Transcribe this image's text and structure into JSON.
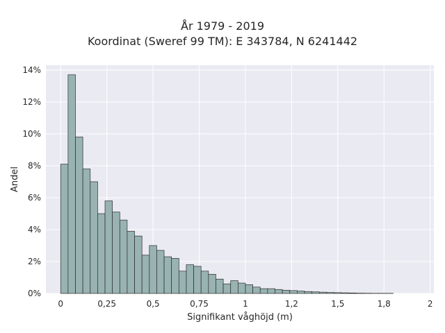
{
  "chart_data": {
    "type": "bar",
    "title": "År 1979 - 2019",
    "subtitle": "Koordinat (Sweref 99 TM): E 343784, N 6241442",
    "xlabel": "Signifikant våghöjd (m)",
    "ylabel": "Andel",
    "xlim": [
      -0.08,
      2.02
    ],
    "ylim": [
      0,
      14.3
    ],
    "x_ticks": [
      0,
      0.25,
      0.5,
      0.75,
      1,
      1.25,
      1.5,
      1.75,
      2
    ],
    "x_tick_labels": [
      "0",
      "0,25",
      "0,5",
      "0,75",
      "1",
      "1,2",
      "1,5",
      "1,8",
      "2"
    ],
    "y_ticks": [
      0,
      2,
      4,
      6,
      8,
      10,
      12,
      14
    ],
    "y_tick_labels": [
      "0%",
      "2%",
      "4%",
      "6%",
      "8%",
      "10%",
      "12%",
      "14%"
    ],
    "bin_width": 0.04,
    "bin_start": 0,
    "values": [
      8.1,
      13.7,
      9.8,
      7.8,
      7.0,
      5.0,
      5.8,
      5.1,
      4.6,
      3.9,
      3.6,
      2.4,
      3.0,
      2.7,
      2.3,
      2.2,
      1.4,
      1.8,
      1.7,
      1.4,
      1.2,
      0.9,
      0.6,
      0.8,
      0.65,
      0.55,
      0.4,
      0.3,
      0.3,
      0.25,
      0.2,
      0.18,
      0.15,
      0.12,
      0.1,
      0.08,
      0.06,
      0.05,
      0.04,
      0.03,
      0.02,
      0.015,
      0.01,
      0.01,
      0.01
    ],
    "grid": true,
    "colors": {
      "bar_fill": "#98b3b1",
      "bar_edge": "#2c2c2c",
      "plot_bg": "#eaeaf2",
      "grid": "#ffffff"
    }
  }
}
